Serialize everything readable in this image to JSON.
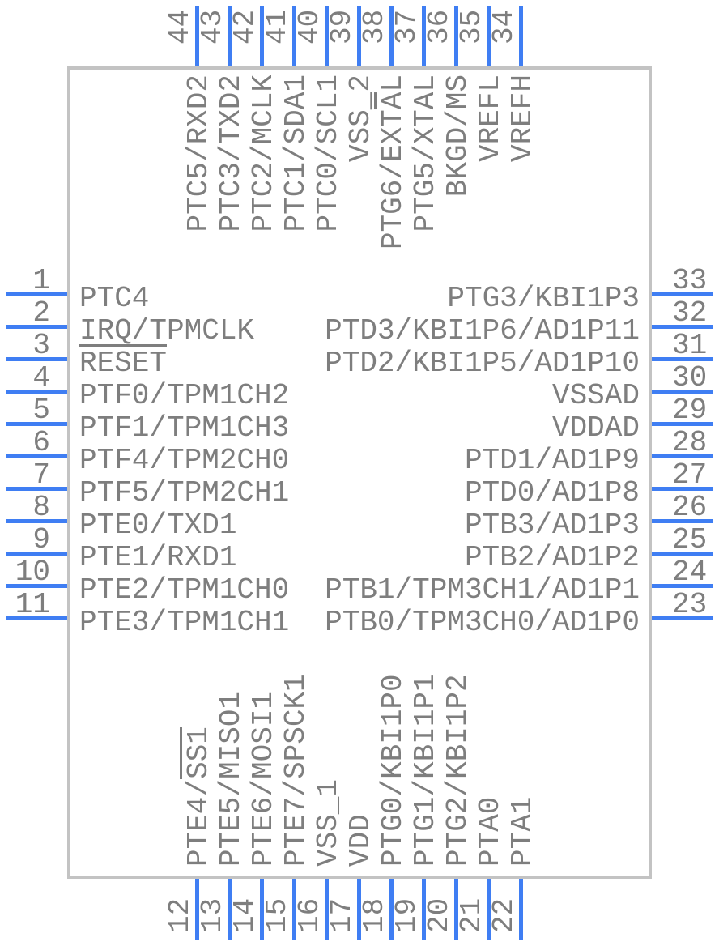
{
  "colors": {
    "pin_line": "#3f7ef3",
    "label_text": "#7e7e7e",
    "body_border": "#c3c3c3"
  },
  "pins": {
    "left": [
      {
        "num": "1",
        "name": "PTC4",
        "parts": [
          {
            "t": "PTC4",
            "o": false
          }
        ]
      },
      {
        "num": "2",
        "name": "IRQ/TPMCLK",
        "parts": [
          {
            "t": "IRQ/TPMCLK",
            "o": false
          }
        ]
      },
      {
        "num": "3",
        "name": "RESET",
        "parts": [
          {
            "t": "RESET",
            "o": true
          }
        ]
      },
      {
        "num": "4",
        "name": "PTF0/TPM1CH2",
        "parts": [
          {
            "t": "PTF0/TPM1CH2",
            "o": false
          }
        ]
      },
      {
        "num": "5",
        "name": "PTF1/TPM1CH3",
        "parts": [
          {
            "t": "PTF1/TPM1CH3",
            "o": false
          }
        ]
      },
      {
        "num": "6",
        "name": "PTF4/TPM2CH0",
        "parts": [
          {
            "t": "PTF4/TPM2CH0",
            "o": false
          }
        ]
      },
      {
        "num": "7",
        "name": "PTF5/TPM2CH1",
        "parts": [
          {
            "t": "PTF5/TPM2CH1",
            "o": false
          }
        ]
      },
      {
        "num": "8",
        "name": "PTE0/TXD1",
        "parts": [
          {
            "t": "PTE0/TXD1",
            "o": false
          }
        ]
      },
      {
        "num": "9",
        "name": "PTE1/RXD1",
        "parts": [
          {
            "t": "PTE1/RXD1",
            "o": false
          }
        ]
      },
      {
        "num": "10",
        "name": "PTE2/TPM1CH0",
        "parts": [
          {
            "t": "PTE2/TPM1CH0",
            "o": false
          }
        ]
      },
      {
        "num": "11",
        "name": "PTE3/TPM1CH1",
        "parts": [
          {
            "t": "PTE3/TPM1CH1",
            "o": false
          }
        ]
      }
    ],
    "right": [
      {
        "num": "33",
        "name": "PTG3/KBI1P3",
        "parts": [
          {
            "t": "PTG3/KBI1P3",
            "o": false
          }
        ]
      },
      {
        "num": "32",
        "name": "PTD3/KBI1P6/AD1P11",
        "parts": [
          {
            "t": "PTD3/KBI1P6/AD1P11",
            "o": false
          }
        ]
      },
      {
        "num": "31",
        "name": "PTD2/KBI1P5/AD1P10",
        "parts": [
          {
            "t": "PTD2/KBI1P5/AD1P10",
            "o": false
          }
        ]
      },
      {
        "num": "30",
        "name": "VSSAD",
        "parts": [
          {
            "t": "VSSAD",
            "o": false
          }
        ]
      },
      {
        "num": "29",
        "name": "VDDAD",
        "parts": [
          {
            "t": "VDDAD",
            "o": false
          }
        ]
      },
      {
        "num": "28",
        "name": "PTD1/AD1P9",
        "parts": [
          {
            "t": "PTD1/AD1P9",
            "o": false
          }
        ]
      },
      {
        "num": "27",
        "name": "PTD0/AD1P8",
        "parts": [
          {
            "t": "PTD0/AD1P8",
            "o": false
          }
        ]
      },
      {
        "num": "26",
        "name": "PTB3/AD1P3",
        "parts": [
          {
            "t": "PTB3/AD1P3",
            "o": false
          }
        ]
      },
      {
        "num": "25",
        "name": "PTB2/AD1P2",
        "parts": [
          {
            "t": "PTB2/AD1P2",
            "o": false
          }
        ]
      },
      {
        "num": "24",
        "name": "PTB1/TPM3CH1/AD1P1",
        "parts": [
          {
            "t": "PTB1/TPM3CH1/AD1P1",
            "o": false
          }
        ]
      },
      {
        "num": "23",
        "name": "PTB0/TPM3CH0/AD1P0",
        "parts": [
          {
            "t": "PTB0/TPM3CH0/AD1P0",
            "o": false
          }
        ]
      }
    ],
    "top": [
      {
        "num": "44",
        "name": "PTC5/RXD2",
        "parts": [
          {
            "t": "PTC5/RXD2",
            "o": false
          }
        ]
      },
      {
        "num": "43",
        "name": "PTC3/TXD2",
        "parts": [
          {
            "t": "PTC3/TXD2",
            "o": false
          }
        ]
      },
      {
        "num": "42",
        "name": "PTC2/MCLK",
        "parts": [
          {
            "t": "PTC2/MCLK",
            "o": false
          }
        ]
      },
      {
        "num": "41",
        "name": "PTC1/SDA1",
        "parts": [
          {
            "t": "PTC1/SDA1",
            "o": false
          }
        ]
      },
      {
        "num": "40",
        "name": "PTC0/SCL1",
        "parts": [
          {
            "t": "PTC0/SCL1",
            "o": false
          }
        ]
      },
      {
        "num": "39",
        "name": "VSS_2",
        "parts": [
          {
            "t": "VSS_2",
            "o": false
          }
        ]
      },
      {
        "num": "38",
        "name": "PTG6/EXTAL",
        "parts": [
          {
            "t": "PTG6/EXT",
            "o": false
          },
          {
            "t": "A",
            "o": true
          },
          {
            "t": "L",
            "o": false
          }
        ]
      },
      {
        "num": "37",
        "name": "PTG5/XTAL",
        "parts": [
          {
            "t": "PTG5/XTAL",
            "o": false
          }
        ]
      },
      {
        "num": "36",
        "name": "BKGD/MS",
        "parts": [
          {
            "t": "BKGD/MS",
            "o": false
          }
        ]
      },
      {
        "num": "35",
        "name": "VREFL",
        "parts": [
          {
            "t": "VREFL",
            "o": false
          }
        ]
      },
      {
        "num": "34",
        "name": "VREFH",
        "parts": [
          {
            "t": "VREFH",
            "o": false
          }
        ]
      }
    ],
    "bottom": [
      {
        "num": "12",
        "name": "PTE4/SS1",
        "parts": [
          {
            "t": "PTE4/",
            "o": false
          },
          {
            "t": "SS1",
            "o": true
          }
        ]
      },
      {
        "num": "13",
        "name": "PTE5/MISO1",
        "parts": [
          {
            "t": "PTE5/MISO1",
            "o": false
          }
        ]
      },
      {
        "num": "14",
        "name": "PTE6/MOSI1",
        "parts": [
          {
            "t": "PTE6/MOSI1",
            "o": false
          }
        ]
      },
      {
        "num": "15",
        "name": "PTE7/SPSCK1",
        "parts": [
          {
            "t": "PTE7/SPSCK1",
            "o": false
          }
        ]
      },
      {
        "num": "16",
        "name": "VSS_1",
        "parts": [
          {
            "t": "VSS_1",
            "o": false
          }
        ]
      },
      {
        "num": "17",
        "name": "VDD",
        "parts": [
          {
            "t": "VDD",
            "o": false
          }
        ]
      },
      {
        "num": "18",
        "name": "PTG0/KBI1P0",
        "parts": [
          {
            "t": "PTG0/KBI1P0",
            "o": false
          }
        ]
      },
      {
        "num": "19",
        "name": "PTG1/KBI1P1",
        "parts": [
          {
            "t": "PTG1/KBI1P1",
            "o": false
          }
        ]
      },
      {
        "num": "20",
        "name": "PTG2/KBI1P2",
        "parts": [
          {
            "t": "PTG2/KBI1P2",
            "o": false
          }
        ]
      },
      {
        "num": "21",
        "name": "PTA0",
        "parts": [
          {
            "t": "PTA0",
            "o": false
          }
        ]
      },
      {
        "num": "22",
        "name": "PTA1",
        "parts": [
          {
            "t": "PTA1",
            "o": false
          }
        ]
      }
    ]
  }
}
